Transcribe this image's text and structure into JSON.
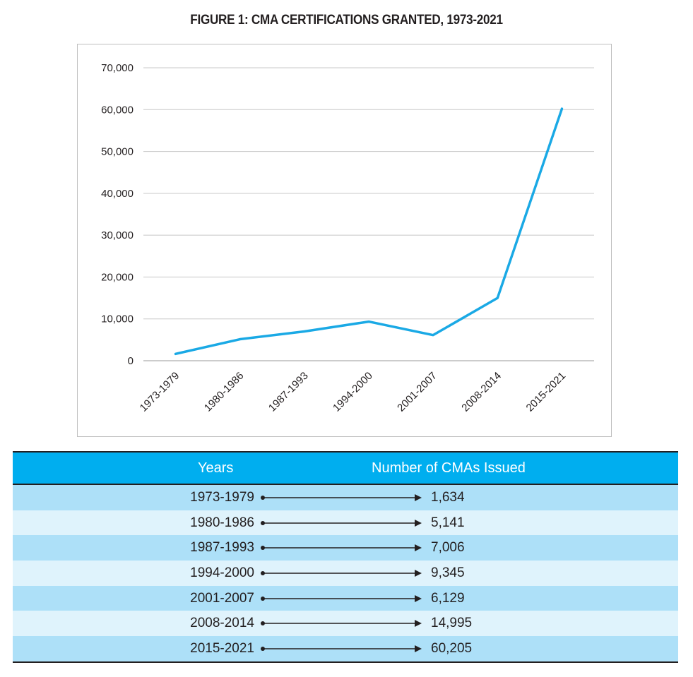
{
  "title": "FIGURE 1: CMA CERTIFICATIONS GRANTED, 1973-2021",
  "chart_data": {
    "type": "line",
    "title": "FIGURE 1: CMA CERTIFICATIONS GRANTED, 1973-2021",
    "categories": [
      "1973-1979",
      "1980-1986",
      "1987-1993",
      "1994-2000",
      "2001-2007",
      "2008-2014",
      "2015-2021"
    ],
    "series": [
      {
        "values": [
          1634,
          5141,
          7006,
          9345,
          6129,
          14995,
          60205
        ]
      }
    ],
    "y_ticks": [
      "0",
      "10,000",
      "20,000",
      "30,000",
      "40,000",
      "50,000",
      "60,000",
      "70,000"
    ],
    "ylim": [
      0,
      70000
    ],
    "grid": true,
    "line_color": "#1aa9e5",
    "xlabel": "",
    "ylabel": ""
  },
  "table": {
    "headers": {
      "years": "Years",
      "number": "Number of CMAs Issued"
    },
    "header_color": "#00aeef",
    "rows": [
      {
        "years": "1973-1979",
        "value": "1,634"
      },
      {
        "years": "1980-1986",
        "value": "5,141"
      },
      {
        "years": "1987-1993",
        "value": "7,006"
      },
      {
        "years": "1994-2000",
        "value": "9,345"
      },
      {
        "years": "2001-2007",
        "value": "6,129"
      },
      {
        "years": "2008-2014",
        "value": "14,995"
      },
      {
        "years": "2015-2021",
        "value": "60,205"
      }
    ]
  }
}
